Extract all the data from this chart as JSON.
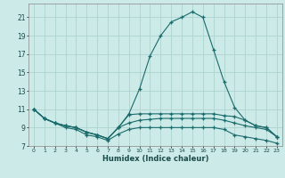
{
  "xlabel": "Humidex (Indice chaleur)",
  "bg_color": "#cceae7",
  "grid_color": "#aed4d0",
  "line_color": "#1a6b6b",
  "marker": "+",
  "x_values": [
    0,
    1,
    2,
    3,
    4,
    5,
    6,
    7,
    8,
    9,
    10,
    11,
    12,
    13,
    14,
    15,
    16,
    17,
    18,
    19,
    20,
    21,
    22,
    23
  ],
  "series": [
    [
      11.0,
      10.0,
      9.5,
      9.2,
      9.0,
      8.5,
      8.2,
      7.8,
      9.0,
      10.5,
      13.2,
      16.8,
      19.0,
      20.5,
      21.0,
      21.6,
      21.0,
      17.5,
      14.0,
      11.2,
      9.8,
      9.2,
      9.0,
      8.0
    ],
    [
      11.0,
      10.0,
      9.5,
      9.2,
      9.0,
      8.5,
      8.2,
      7.8,
      9.0,
      10.4,
      10.5,
      10.5,
      10.5,
      10.5,
      10.5,
      10.5,
      10.5,
      10.5,
      10.3,
      10.2,
      9.8,
      9.2,
      9.0,
      8.0
    ],
    [
      11.0,
      10.0,
      9.5,
      9.2,
      9.0,
      8.5,
      8.2,
      7.8,
      9.0,
      9.5,
      9.8,
      9.9,
      10.0,
      10.0,
      10.0,
      10.0,
      10.0,
      10.0,
      9.8,
      9.5,
      9.2,
      9.0,
      8.8,
      8.0
    ],
    [
      11.0,
      10.0,
      9.5,
      9.0,
      8.8,
      8.2,
      8.0,
      7.6,
      8.3,
      8.8,
      9.0,
      9.0,
      9.0,
      9.0,
      9.0,
      9.0,
      9.0,
      9.0,
      8.8,
      8.2,
      8.0,
      7.8,
      7.6,
      7.3
    ]
  ],
  "yticks": [
    7,
    9,
    11,
    13,
    15,
    17,
    19,
    21
  ],
  "ylim": [
    7,
    22.5
  ],
  "xlim": [
    -0.5,
    23.5
  ]
}
